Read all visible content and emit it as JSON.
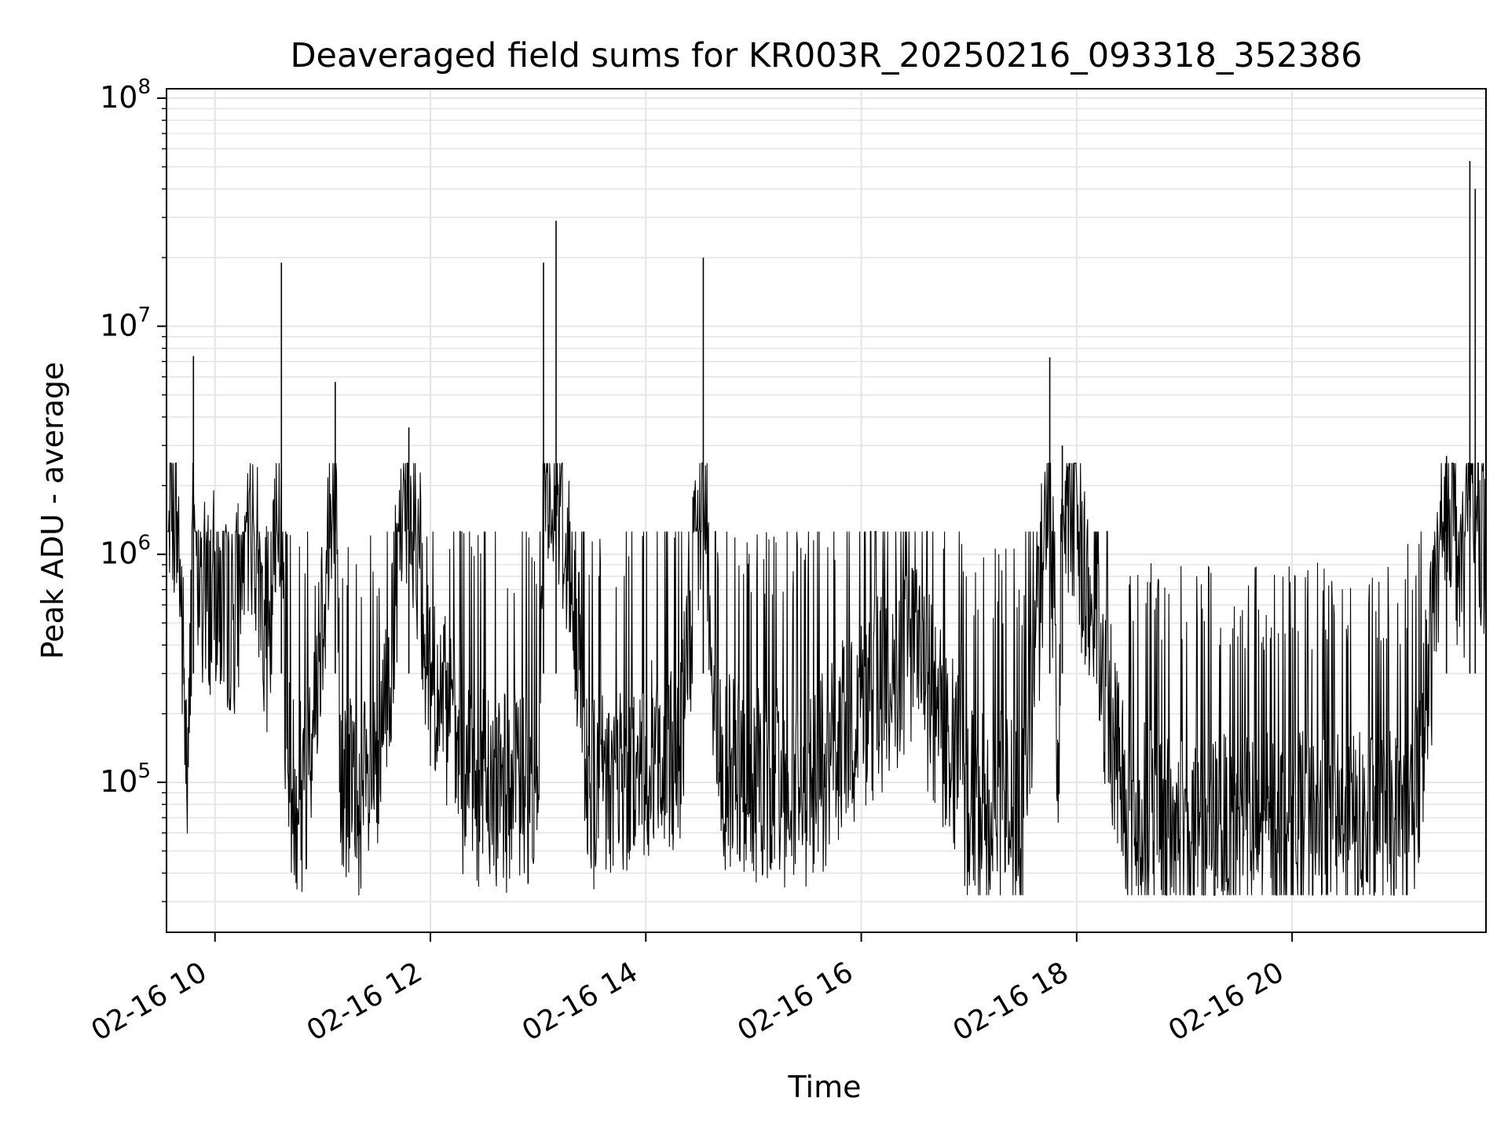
{
  "chart_data": {
    "type": "line",
    "title": "Deaveraged field sums for KR003R_20250216_093318_352386",
    "xlabel": "Time",
    "ylabel": "Peak ADU - average",
    "yscale": "log",
    "xlim": [
      "2025-02-16 09:33",
      "2025-02-16 21:48"
    ],
    "ylim": [
      22000,
      110000000
    ],
    "x_ticks": [
      "2025-02-16 10:00",
      "2025-02-16 12:00",
      "2025-02-16 14:00",
      "2025-02-16 16:00",
      "2025-02-16 18:00",
      "2025-02-16 20:00"
    ],
    "x_tick_labels": [
      "02-16 10",
      "02-16 12",
      "02-16 14",
      "02-16 16",
      "02-16 18",
      "02-16 20"
    ],
    "y_ticks": [
      100000,
      1000000,
      10000000,
      100000000
    ],
    "y_tick_labels": [
      {
        "base": "10",
        "exp": "5"
      },
      {
        "base": "10",
        "exp": "6"
      },
      {
        "base": "10",
        "exp": "7"
      },
      {
        "base": "10",
        "exp": "8"
      }
    ],
    "grid": true,
    "line_color": "#000000",
    "grid_color": "#e5e5e5",
    "series": [
      {
        "points": [
          [
            "2025-02-16 09:33",
            1800000
          ],
          [
            "2025-02-16 09:36",
            2200000
          ],
          [
            "2025-02-16 09:40",
            1100000
          ],
          [
            "2025-02-16 09:45",
            80000
          ],
          [
            "2025-02-16 09:48",
            7400000
          ],
          [
            "2025-02-16 09:52",
            600000
          ],
          [
            "2025-02-16 10:00",
            700000
          ],
          [
            "2025-02-16 10:10",
            500000
          ],
          [
            "2025-02-16 10:20",
            1500000
          ],
          [
            "2025-02-16 10:30",
            400000
          ],
          [
            "2025-02-16 10:37",
            19000000
          ],
          [
            "2025-02-16 10:40",
            100000
          ],
          [
            "2025-02-16 10:50",
            90000
          ],
          [
            "2025-02-16 11:07",
            5700000
          ],
          [
            "2025-02-16 11:10",
            100000
          ],
          [
            "2025-02-16 11:30",
            80000
          ],
          [
            "2025-02-16 11:48",
            3600000
          ],
          [
            "2025-02-16 12:00",
            300000
          ],
          [
            "2025-02-16 12:20",
            100000
          ],
          [
            "2025-02-16 12:40",
            90000
          ],
          [
            "2025-02-16 13:00",
            100000
          ],
          [
            "2025-02-16 13:03",
            19000000
          ],
          [
            "2025-02-16 13:10",
            29000000
          ],
          [
            "2025-02-16 13:30",
            90000
          ],
          [
            "2025-02-16 14:00",
            120000
          ],
          [
            "2025-02-16 14:20",
            150000
          ],
          [
            "2025-02-16 14:32",
            20000000
          ],
          [
            "2025-02-16 14:40",
            120000
          ],
          [
            "2025-02-16 15:00",
            100000
          ],
          [
            "2025-02-16 15:30",
            90000
          ],
          [
            "2025-02-16 16:00",
            200000
          ],
          [
            "2025-02-16 16:30",
            350000
          ],
          [
            "2025-02-16 17:00",
            80000
          ],
          [
            "2025-02-16 17:30",
            70000
          ],
          [
            "2025-02-16 17:45",
            7300000
          ],
          [
            "2025-02-16 17:50",
            100000
          ],
          [
            "2025-02-16 17:52",
            3000000
          ],
          [
            "2025-02-16 18:30",
            70000
          ],
          [
            "2025-02-16 19:00",
            60000
          ],
          [
            "2025-02-16 19:30",
            60000
          ],
          [
            "2025-02-16 20:00",
            60000
          ],
          [
            "2025-02-16 20:30",
            60000
          ],
          [
            "2025-02-16 21:00",
            60000
          ],
          [
            "2025-02-16 21:10",
            100000
          ],
          [
            "2025-02-16 21:20",
            600000
          ],
          [
            "2025-02-16 21:26",
            2700000
          ],
          [
            "2025-02-16 21:35",
            700000
          ],
          [
            "2025-02-16 21:39",
            53000000
          ],
          [
            "2025-02-16 21:42",
            40000000
          ],
          [
            "2025-02-16 21:48",
            800000
          ]
        ]
      }
    ]
  }
}
